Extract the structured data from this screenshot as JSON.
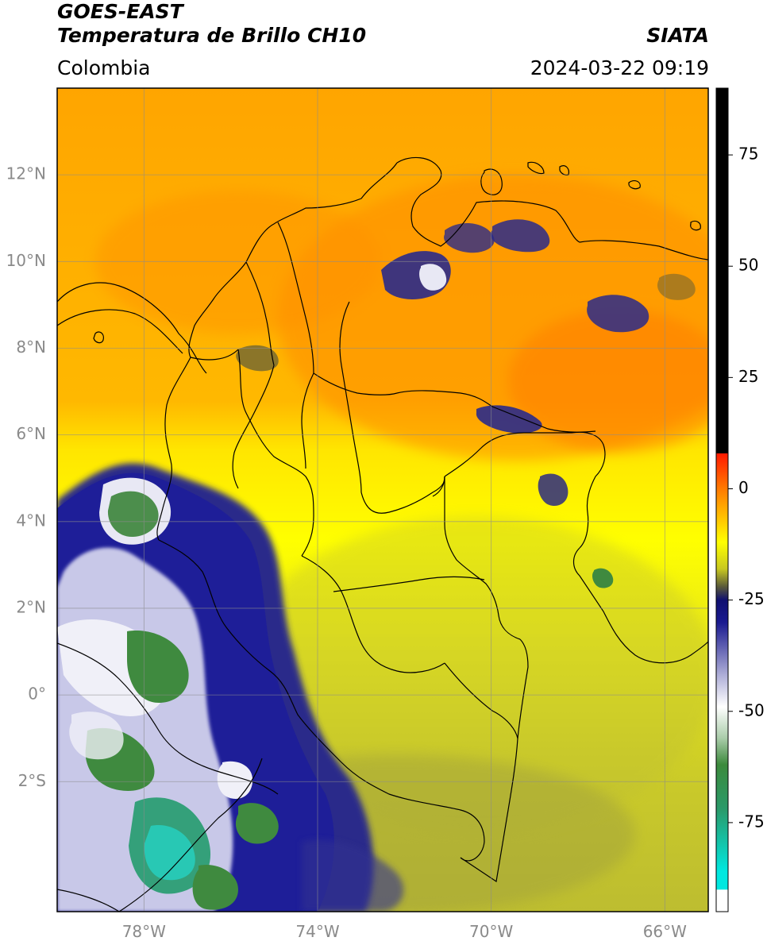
{
  "header": {
    "satellite": "GOES-EAST",
    "product": "Temperatura de Brillo CH10",
    "institution": "SIATA",
    "region": "Colombia",
    "datetime": "2024-03-22 09:19"
  },
  "map": {
    "lon_range": [
      -80,
      -65
    ],
    "lat_range": [
      -5,
      14
    ],
    "lat_ticks": [
      {
        "value": 12,
        "label": "12°N"
      },
      {
        "value": 10,
        "label": "10°N"
      },
      {
        "value": 8,
        "label": "8°N"
      },
      {
        "value": 6,
        "label": "6°N"
      },
      {
        "value": 4,
        "label": "4°N"
      },
      {
        "value": 2,
        "label": "2°N"
      },
      {
        "value": 0,
        "label": "0°"
      },
      {
        "value": -2,
        "label": "2°S"
      }
    ],
    "lon_ticks": [
      {
        "value": -78,
        "label": "78°W"
      },
      {
        "value": -74,
        "label": "74°W"
      },
      {
        "value": -70,
        "label": "70°W"
      },
      {
        "value": -66,
        "label": "66°W"
      }
    ]
  },
  "colorbar": {
    "units_range": [
      -95,
      90
    ],
    "ticks": [
      {
        "value": 75,
        "label": "75"
      },
      {
        "value": 50,
        "label": "50"
      },
      {
        "value": 25,
        "label": "25"
      },
      {
        "value": 0,
        "label": "0"
      },
      {
        "value": -25,
        "label": "-25"
      },
      {
        "value": -50,
        "label": "-50"
      },
      {
        "value": -75,
        "label": "-75"
      }
    ],
    "stops": [
      {
        "value": 90,
        "color": "#000000"
      },
      {
        "value": 8,
        "color": "#000000"
      },
      {
        "value": 7.9,
        "color": "#ff1a00"
      },
      {
        "value": 0,
        "color": "#ff7a00"
      },
      {
        "value": -12,
        "color": "#ffff00"
      },
      {
        "value": -18,
        "color": "#c8c820"
      },
      {
        "value": -22,
        "color": "#5a5a3a"
      },
      {
        "value": -25,
        "color": "#101070"
      },
      {
        "value": -30,
        "color": "#1a1a90"
      },
      {
        "value": -42,
        "color": "#b0b0d8"
      },
      {
        "value": -49,
        "color": "#ffffff"
      },
      {
        "value": -56,
        "color": "#aaccaa"
      },
      {
        "value": -62,
        "color": "#3c8a3c"
      },
      {
        "value": -72,
        "color": "#2a9a6a"
      },
      {
        "value": -86,
        "color": "#00e8e0"
      },
      {
        "value": -90,
        "color": "#00e8e0"
      },
      {
        "value": -90.1,
        "color": "#ffffff"
      },
      {
        "value": -95,
        "color": "#ffffff"
      }
    ]
  }
}
